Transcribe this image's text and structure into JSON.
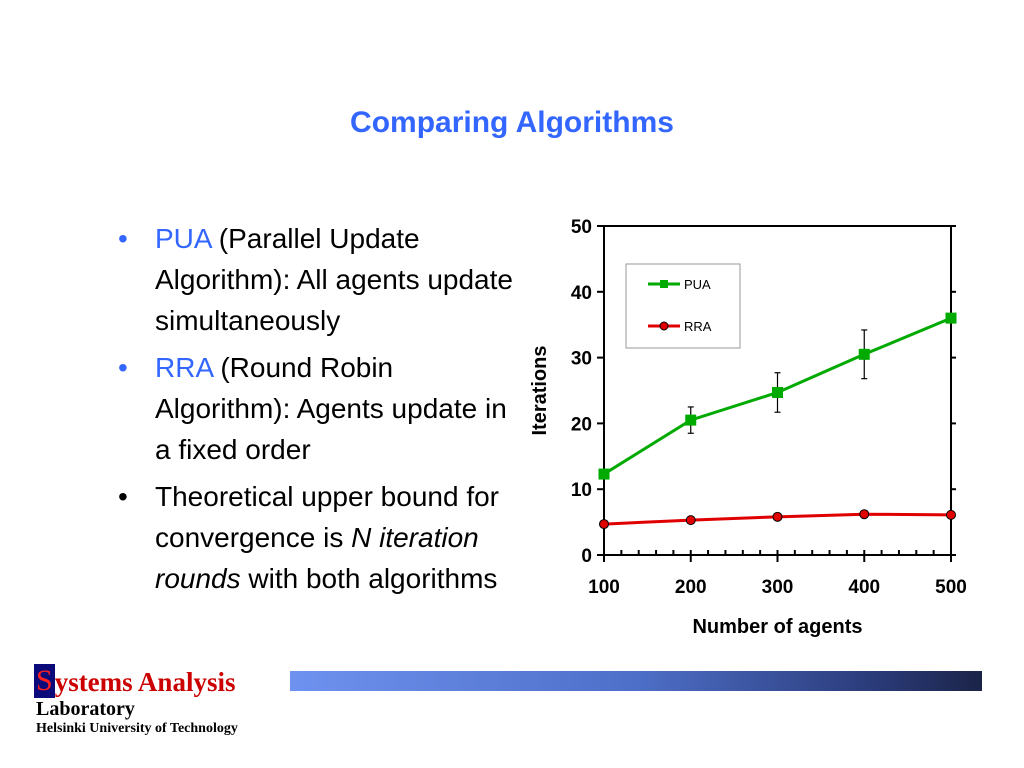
{
  "slide": {
    "title": "Comparing Algorithms",
    "bullets": [
      {
        "term": "PUA",
        "text": " (Parallel Update Algorithm): All agents update simultaneously"
      },
      {
        "term": "RRA",
        "text": " (Round Robin Algorithm): Agents update in a fixed order"
      },
      {
        "pre": "Theoretical upper bound for convergence is ",
        "em": "N iteration rounds",
        "post": " with both algorithms"
      }
    ],
    "bullet_glyph": "•"
  },
  "footer": {
    "logo_initial": "S",
    "logo_rest": "ystems Analysis",
    "logo_line2": "Laboratory",
    "institution": "Helsinki University of Technology"
  },
  "colors": {
    "accent": "#3366ff",
    "pua": "#00aa00",
    "rra": "#e00000",
    "logo_red": "#cc0000",
    "logo_navy": "#0a0a7a"
  },
  "chart_data": {
    "type": "line",
    "x": [
      100,
      200,
      300,
      400,
      500
    ],
    "xlabel": "Number of agents",
    "ylabel": "Iterations",
    "xlim": [
      100,
      500
    ],
    "ylim": [
      0,
      50
    ],
    "xticks": [
      100,
      200,
      300,
      400,
      500
    ],
    "yticks": [
      0,
      10,
      20,
      30,
      40,
      50
    ],
    "grid": false,
    "legend_position": "top-left inside plot",
    "series": [
      {
        "name": "PUA",
        "color": "#00aa00",
        "marker": "square",
        "values": [
          12.3,
          20.5,
          24.7,
          30.5,
          36.0
        ],
        "error": [
          0,
          2.0,
          3.0,
          3.7,
          0
        ]
      },
      {
        "name": "RRA",
        "color": "#e00000",
        "marker": "circle",
        "values": [
          4.7,
          5.3,
          5.8,
          6.2,
          6.1
        ]
      }
    ]
  }
}
